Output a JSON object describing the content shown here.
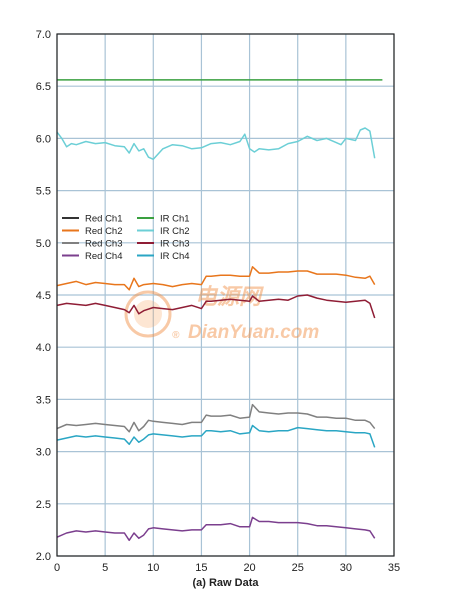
{
  "chart_data": {
    "type": "line",
    "xlabel": "(a) Raw Data",
    "ylabel": "",
    "xlim": [
      0,
      35
    ],
    "ylim": [
      2.0,
      7.0
    ],
    "xticks": [
      0,
      5,
      10,
      15,
      20,
      25,
      30,
      35
    ],
    "yticks": [
      "2.0",
      "2.5",
      "3.0",
      "3.5",
      "4.0",
      "4.5",
      "5.0",
      "5.5",
      "6.0",
      "6.5",
      "7.0"
    ],
    "grid": true,
    "legend_position": "middle-left",
    "colors": {
      "grid": "#a9c3d6",
      "frame": "#222222"
    },
    "series": [
      {
        "name": "Red Ch1",
        "color": "#333333",
        "x": [],
        "y": []
      },
      {
        "name": "Red Ch2",
        "color": "#e8761c",
        "x": [
          0,
          1,
          2,
          3,
          4,
          5,
          6,
          7,
          7.5,
          8,
          8.5,
          9,
          10,
          11,
          12,
          13,
          14,
          15,
          15.5,
          16,
          17,
          18,
          19,
          20,
          20.3,
          21,
          22,
          23,
          24,
          25,
          26,
          27,
          28,
          29,
          30,
          31,
          32,
          32.5,
          33
        ],
        "y": [
          4.59,
          4.61,
          4.63,
          4.6,
          4.62,
          4.61,
          4.6,
          4.6,
          4.55,
          4.66,
          4.58,
          4.6,
          4.61,
          4.6,
          4.58,
          4.6,
          4.61,
          4.6,
          4.68,
          4.68,
          4.69,
          4.69,
          4.68,
          4.68,
          4.77,
          4.71,
          4.71,
          4.72,
          4.72,
          4.73,
          4.73,
          4.7,
          4.7,
          4.7,
          4.69,
          4.67,
          4.66,
          4.68,
          4.6
        ]
      },
      {
        "name": "Red Ch3",
        "color": "#808080",
        "x": [
          0,
          1,
          2,
          3,
          4,
          5,
          6,
          7,
          7.5,
          8,
          8.5,
          9,
          9.5,
          10,
          11,
          12,
          13,
          14,
          15,
          15.5,
          16,
          17,
          18,
          19,
          20,
          20.3,
          21,
          22,
          23,
          24,
          25,
          26,
          27,
          28,
          29,
          30,
          31,
          32,
          32.5,
          33
        ],
        "y": [
          3.22,
          3.26,
          3.25,
          3.26,
          3.27,
          3.26,
          3.25,
          3.24,
          3.19,
          3.28,
          3.2,
          3.24,
          3.3,
          3.29,
          3.28,
          3.27,
          3.26,
          3.28,
          3.28,
          3.35,
          3.34,
          3.34,
          3.35,
          3.32,
          3.33,
          3.45,
          3.38,
          3.37,
          3.36,
          3.37,
          3.37,
          3.36,
          3.33,
          3.33,
          3.32,
          3.32,
          3.3,
          3.3,
          3.28,
          3.22
        ]
      },
      {
        "name": "Red Ch4",
        "color": "#7b3f8e",
        "x": [
          0,
          1,
          2,
          3,
          4,
          5,
          6,
          7,
          7.5,
          8,
          8.5,
          9,
          9.5,
          10,
          11,
          12,
          13,
          14,
          15,
          15.5,
          16,
          17,
          18,
          19,
          20,
          20.3,
          21,
          22,
          23,
          24,
          25,
          26,
          27,
          28,
          29,
          30,
          31,
          32,
          32.5,
          33
        ],
        "y": [
          2.18,
          2.22,
          2.24,
          2.23,
          2.24,
          2.23,
          2.22,
          2.22,
          2.15,
          2.22,
          2.17,
          2.2,
          2.26,
          2.27,
          2.26,
          2.25,
          2.24,
          2.25,
          2.25,
          2.3,
          2.3,
          2.3,
          2.31,
          2.28,
          2.28,
          2.37,
          2.33,
          2.33,
          2.32,
          2.32,
          2.32,
          2.31,
          2.29,
          2.29,
          2.28,
          2.27,
          2.26,
          2.25,
          2.24,
          2.17
        ]
      },
      {
        "name": "IR Ch1",
        "color": "#3aa040",
        "x": [
          0,
          33.8
        ],
        "y": [
          6.56,
          6.56
        ]
      },
      {
        "name": "IR Ch2",
        "color": "#6ccfd6",
        "x": [
          0,
          0.5,
          1,
          1.5,
          2,
          3,
          4,
          5,
          6,
          7,
          7.5,
          8,
          8.5,
          9,
          9.5,
          10,
          11,
          12,
          13,
          14,
          15,
          16,
          17,
          18,
          19,
          19.5,
          20,
          20.5,
          21,
          22,
          23,
          24,
          25,
          26,
          27,
          28,
          29,
          29.5,
          30,
          31,
          31.5,
          32,
          32.5,
          33
        ],
        "y": [
          6.06,
          6.0,
          5.92,
          5.95,
          5.94,
          5.97,
          5.95,
          5.96,
          5.93,
          5.92,
          5.86,
          5.95,
          5.88,
          5.9,
          5.82,
          5.8,
          5.9,
          5.94,
          5.93,
          5.9,
          5.91,
          5.95,
          5.96,
          5.94,
          5.97,
          6.04,
          5.9,
          5.87,
          5.9,
          5.89,
          5.9,
          5.95,
          5.97,
          6.02,
          5.98,
          6.0,
          5.96,
          5.94,
          6.0,
          5.98,
          6.08,
          6.1,
          6.07,
          5.81
        ]
      },
      {
        "name": "IR Ch3",
        "color": "#8f1d35",
        "x": [
          0,
          1,
          2,
          3,
          4,
          5,
          6,
          7,
          7.5,
          8,
          8.5,
          9,
          10,
          11,
          12,
          13,
          14,
          15,
          15.5,
          16,
          17,
          18,
          19,
          20,
          20.3,
          21,
          22,
          23,
          24,
          25,
          26,
          27,
          28,
          29,
          30,
          31,
          32,
          32.5,
          33
        ],
        "y": [
          4.4,
          4.42,
          4.41,
          4.4,
          4.42,
          4.4,
          4.38,
          4.36,
          4.33,
          4.4,
          4.32,
          4.35,
          4.38,
          4.37,
          4.36,
          4.38,
          4.4,
          4.37,
          4.44,
          4.44,
          4.45,
          4.46,
          4.45,
          4.44,
          4.49,
          4.44,
          4.45,
          4.46,
          4.45,
          4.49,
          4.5,
          4.47,
          4.45,
          4.44,
          4.43,
          4.44,
          4.45,
          4.42,
          4.28
        ]
      },
      {
        "name": "IR Ch4",
        "color": "#2aa6c4",
        "x": [
          0,
          1,
          2,
          3,
          4,
          5,
          6,
          7,
          7.5,
          8,
          8.5,
          9,
          9.5,
          10,
          11,
          12,
          13,
          14,
          15,
          15.5,
          16,
          17,
          18,
          19,
          20,
          20.3,
          21,
          22,
          23,
          24,
          25,
          26,
          27,
          28,
          29,
          30,
          31,
          32,
          32.5,
          33
        ],
        "y": [
          3.11,
          3.13,
          3.15,
          3.14,
          3.15,
          3.14,
          3.13,
          3.12,
          3.07,
          3.14,
          3.09,
          3.12,
          3.16,
          3.17,
          3.16,
          3.15,
          3.14,
          3.15,
          3.15,
          3.2,
          3.2,
          3.19,
          3.2,
          3.17,
          3.18,
          3.25,
          3.2,
          3.19,
          3.2,
          3.2,
          3.23,
          3.22,
          3.21,
          3.2,
          3.2,
          3.19,
          3.18,
          3.18,
          3.17,
          3.04
        ]
      }
    ]
  },
  "watermark": {
    "text": "DianYuan.com",
    "cn_text": "电源网",
    "registered": "®",
    "color": "#f08a3c"
  }
}
